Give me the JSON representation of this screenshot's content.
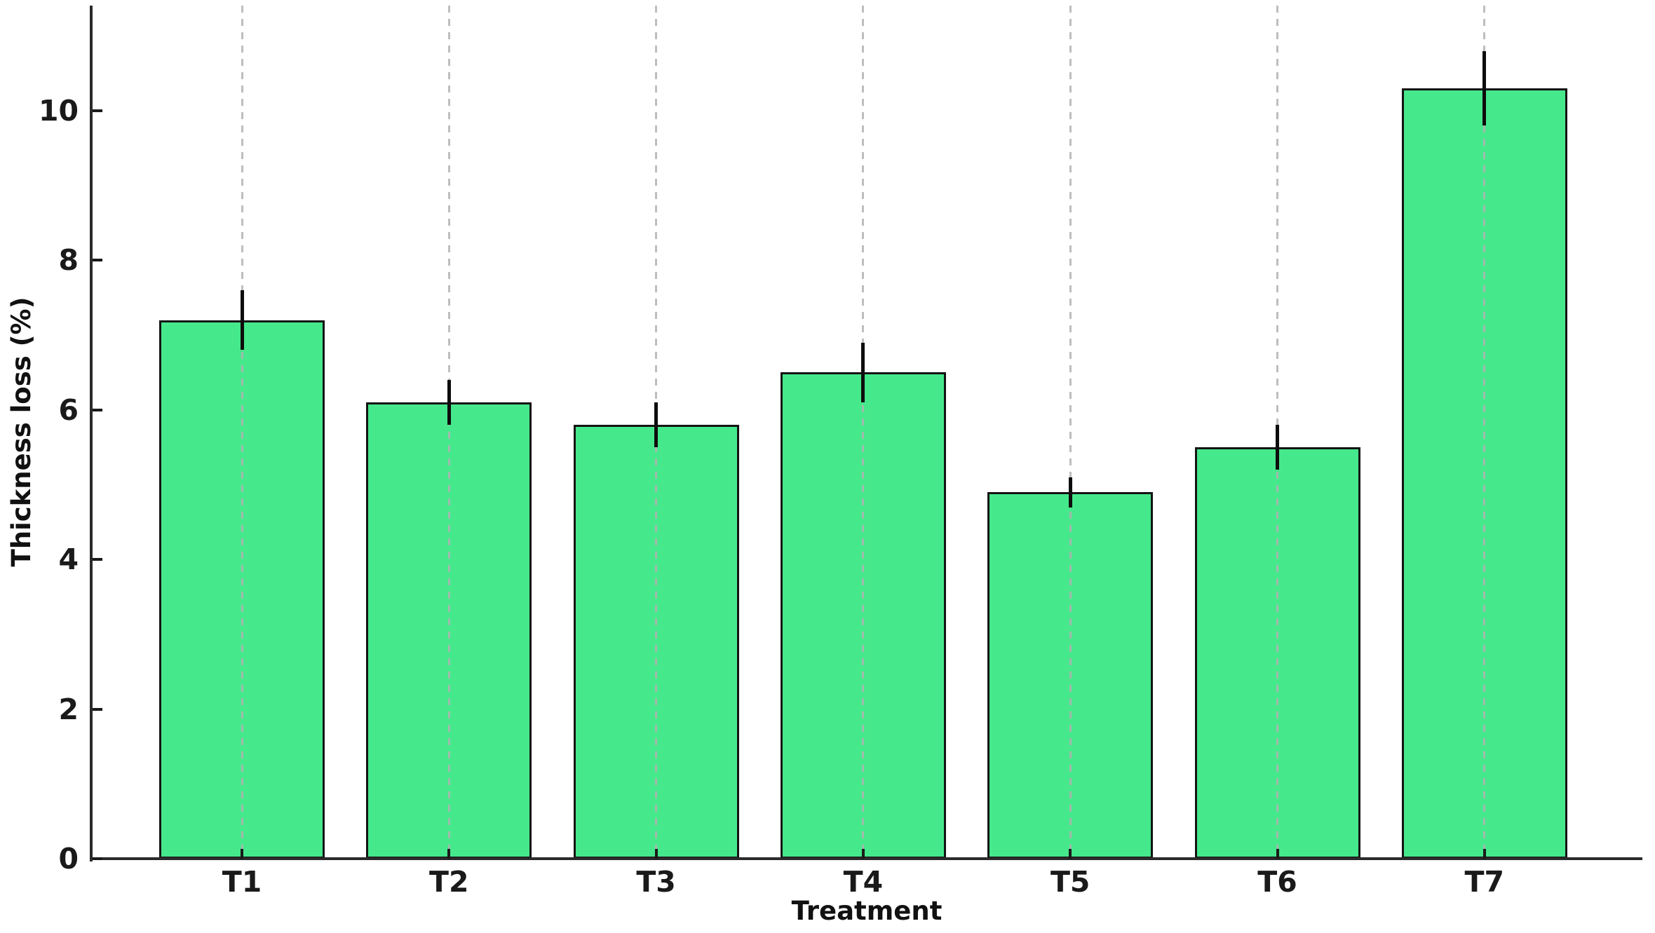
{
  "chart_data": {
    "type": "bar",
    "title": "",
    "xlabel": "Treatment",
    "ylabel": "Thickness loss (%)",
    "categories": [
      "T1",
      "T2",
      "T3",
      "T4",
      "T5",
      "T6",
      "T7"
    ],
    "values": [
      7.2,
      6.1,
      5.8,
      6.5,
      4.9,
      5.5,
      10.3
    ],
    "errors": [
      0.4,
      0.3,
      0.3,
      0.4,
      0.2,
      0.3,
      0.5
    ],
    "ylim": [
      0,
      11.4
    ],
    "yticks": [
      0,
      2,
      4,
      6,
      8,
      10
    ],
    "grid": "vertical dashed gridline at each bar center",
    "legend": "none",
    "error_bar_style": "plain vertical line, no caps",
    "bar_color": "#46E88C",
    "bar_edge_color": "#141414",
    "error_color": "#0d0d0d",
    "grid_color": "#b2b2b2",
    "axis_color": "#2a2a2a",
    "text_color": "#1a1a1a",
    "background_color": "#ffffff"
  }
}
